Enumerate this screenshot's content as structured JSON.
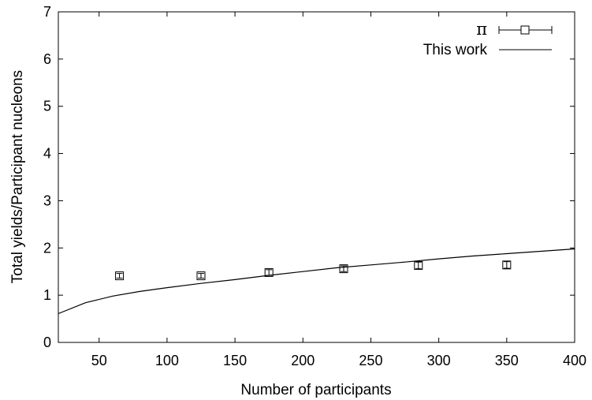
{
  "chart_data": {
    "type": "scatter",
    "title": "",
    "xlabel": "Number of participants",
    "ylabel": "Total yields/Participant nucleons",
    "xlim": [
      20,
      400
    ],
    "ylim": [
      0,
      7
    ],
    "xticks": [
      50,
      100,
      150,
      200,
      250,
      300,
      350,
      400
    ],
    "yticks": [
      0,
      1,
      2,
      3,
      4,
      5,
      6,
      7
    ],
    "grid": false,
    "legend_position": "top-right",
    "series": [
      {
        "name": "π",
        "kind": "points-with-errorbars",
        "marker": "open-square",
        "x": [
          65,
          125,
          175,
          230,
          285,
          350
        ],
        "y": [
          1.41,
          1.41,
          1.48,
          1.56,
          1.63,
          1.64
        ],
        "yerr": [
          0.05,
          0.05,
          0.06,
          0.06,
          0.07,
          0.07
        ]
      },
      {
        "name": "This work",
        "kind": "line",
        "x": [
          20,
          40,
          60,
          80,
          100,
          125,
          150,
          175,
          200,
          225,
          250,
          275,
          300,
          325,
          350,
          375,
          400
        ],
        "y": [
          0.61,
          0.84,
          0.98,
          1.08,
          1.16,
          1.25,
          1.33,
          1.42,
          1.5,
          1.58,
          1.64,
          1.7,
          1.77,
          1.83,
          1.88,
          1.93,
          1.98
        ]
      }
    ]
  }
}
